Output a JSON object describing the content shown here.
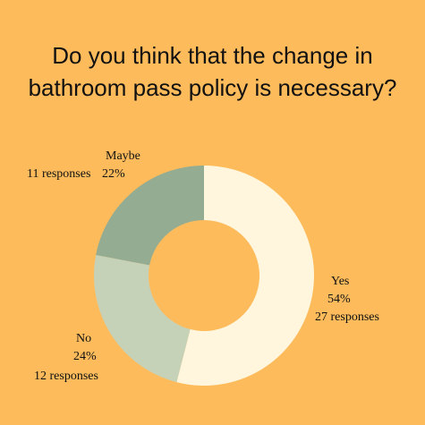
{
  "chart_data": {
    "type": "pie",
    "title": "Do you think that the change in bathroom pass policy is necessary?",
    "slices": [
      {
        "label": "Yes",
        "percent": "54%",
        "responses": "27 responses",
        "value": 27,
        "color": "#FFF6DD"
      },
      {
        "label": "No",
        "percent": "24%",
        "responses": "12 responses",
        "value": 12,
        "color": "#C6D2B7"
      },
      {
        "label": "Maybe",
        "percent": "22%",
        "responses": "11 responses",
        "value": 11,
        "color": "#94AC91"
      }
    ],
    "style": "donut"
  }
}
